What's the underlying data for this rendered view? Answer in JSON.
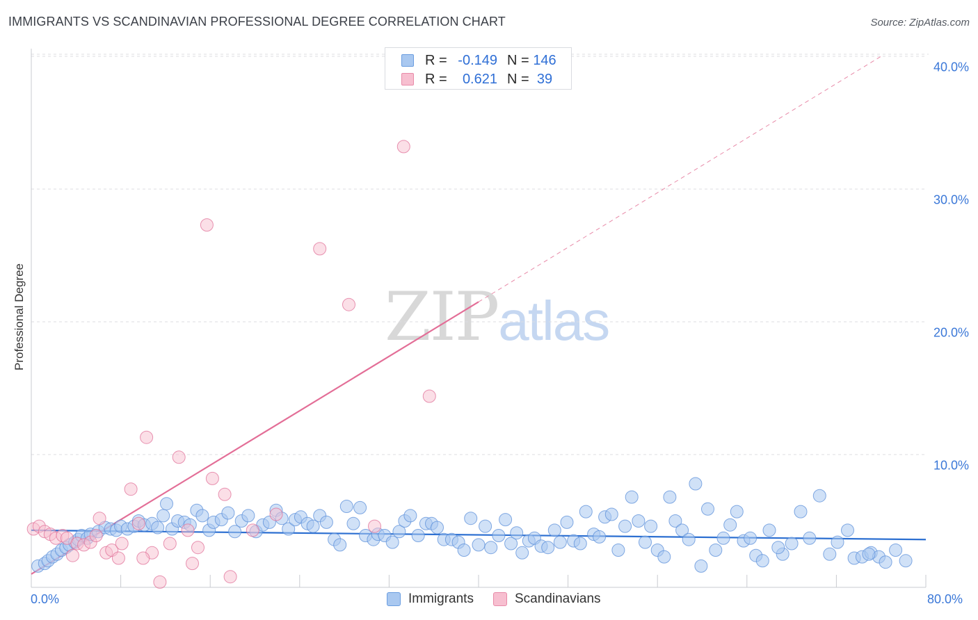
{
  "header": {
    "title": "IMMIGRANTS VS SCANDINAVIAN PROFESSIONAL DEGREE CORRELATION CHART",
    "source": "Source: ZipAtlas.com"
  },
  "watermark": {
    "zip": "ZIP",
    "atlas": "atlas"
  },
  "legend": {
    "rows": [
      {
        "r_label": "R =",
        "r_value": "-0.149",
        "n_label": "N =",
        "n_value": "146",
        "fill": "#a9c8f0",
        "stroke": "#6a9de0"
      },
      {
        "r_label": "R =",
        "r_value": "0.621",
        "n_label": "N =",
        "n_value": "39",
        "fill": "#f7bfd0",
        "stroke": "#e88aa8"
      }
    ]
  },
  "bottom_legend": [
    {
      "label": "Immigrants",
      "fill": "#a9c8f0",
      "stroke": "#6a9de0"
    },
    {
      "label": "Scandinavians",
      "fill": "#f7bfd0",
      "stroke": "#e88aa8"
    }
  ],
  "axes": {
    "ylabel": "Professional Degree",
    "y_ticks": [
      "40.0%",
      "30.0%",
      "20.0%",
      "10.0%"
    ],
    "x_ticks": [
      "0.0%",
      "80.0%"
    ]
  },
  "chart_data": {
    "type": "scatter",
    "title": "IMMIGRANTS VS SCANDINAVIAN PROFESSIONAL DEGREE CORRELATION CHART",
    "xlabel": "",
    "ylabel": "Professional Degree",
    "xlim": [
      0,
      80
    ],
    "ylim": [
      0,
      40
    ],
    "y_tick_values": [
      10,
      20,
      30,
      40
    ],
    "x_tick_values": [
      0,
      80
    ],
    "grid": true,
    "series": [
      {
        "name": "Immigrants",
        "color": "#5b8fd9",
        "fill": "#a9c8f0",
        "r": -0.149,
        "n": 146,
        "trend": {
          "x": [
            0,
            80
          ],
          "y": [
            4.3,
            3.6
          ],
          "style": "solid"
        },
        "points": [
          [
            0.6,
            1.6
          ],
          [
            1.2,
            1.8
          ],
          [
            1.5,
            2.0
          ],
          [
            1.9,
            2.3
          ],
          [
            2.3,
            2.5
          ],
          [
            2.7,
            2.8
          ],
          [
            3.1,
            3.0
          ],
          [
            3.4,
            3.2
          ],
          [
            3.9,
            3.4
          ],
          [
            4.2,
            3.6
          ],
          [
            4.5,
            3.9
          ],
          [
            5.0,
            3.7
          ],
          [
            5.3,
            4.0
          ],
          [
            6.0,
            4.2
          ],
          [
            6.6,
            4.5
          ],
          [
            7.1,
            4.4
          ],
          [
            7.6,
            4.3
          ],
          [
            8.0,
            4.6
          ],
          [
            8.6,
            4.4
          ],
          [
            9.2,
            4.6
          ],
          [
            9.6,
            5.0
          ],
          [
            10.1,
            4.7
          ],
          [
            10.8,
            4.8
          ],
          [
            11.3,
            4.5
          ],
          [
            11.8,
            5.4
          ],
          [
            12.1,
            6.3
          ],
          [
            12.6,
            4.4
          ],
          [
            13.1,
            5.0
          ],
          [
            13.7,
            4.9
          ],
          [
            14.2,
            4.7
          ],
          [
            14.8,
            5.8
          ],
          [
            15.3,
            5.4
          ],
          [
            15.9,
            4.3
          ],
          [
            16.3,
            4.9
          ],
          [
            17.0,
            5.1
          ],
          [
            17.6,
            5.6
          ],
          [
            18.2,
            4.2
          ],
          [
            18.8,
            5.0
          ],
          [
            19.4,
            5.4
          ],
          [
            20.1,
            4.2
          ],
          [
            20.7,
            4.7
          ],
          [
            21.3,
            4.9
          ],
          [
            21.9,
            5.8
          ],
          [
            22.4,
            5.2
          ],
          [
            23.0,
            4.4
          ],
          [
            23.6,
            5.1
          ],
          [
            24.1,
            5.3
          ],
          [
            24.7,
            4.8
          ],
          [
            25.2,
            4.6
          ],
          [
            25.8,
            5.4
          ],
          [
            26.4,
            4.9
          ],
          [
            27.1,
            3.6
          ],
          [
            27.6,
            3.2
          ],
          [
            28.2,
            6.1
          ],
          [
            28.8,
            4.8
          ],
          [
            29.4,
            6.0
          ],
          [
            29.9,
            3.9
          ],
          [
            30.6,
            3.6
          ],
          [
            31.0,
            4.0
          ],
          [
            31.6,
            3.9
          ],
          [
            32.3,
            3.4
          ],
          [
            32.9,
            4.2
          ],
          [
            33.4,
            5.0
          ],
          [
            33.9,
            5.4
          ],
          [
            34.6,
            3.9
          ],
          [
            35.3,
            4.8
          ],
          [
            35.8,
            4.8
          ],
          [
            36.3,
            4.5
          ],
          [
            36.9,
            3.6
          ],
          [
            37.6,
            3.6
          ],
          [
            38.2,
            3.4
          ],
          [
            38.7,
            2.8
          ],
          [
            39.3,
            5.2
          ],
          [
            40.0,
            3.2
          ],
          [
            40.6,
            4.6
          ],
          [
            41.1,
            3.0
          ],
          [
            41.8,
            3.9
          ],
          [
            42.4,
            5.1
          ],
          [
            42.9,
            3.3
          ],
          [
            43.4,
            4.1
          ],
          [
            43.9,
            2.6
          ],
          [
            44.5,
            3.5
          ],
          [
            45.0,
            3.7
          ],
          [
            45.6,
            3.1
          ],
          [
            46.2,
            3.0
          ],
          [
            46.8,
            4.3
          ],
          [
            47.3,
            3.4
          ],
          [
            47.9,
            4.9
          ],
          [
            48.5,
            3.5
          ],
          [
            49.1,
            3.3
          ],
          [
            49.6,
            5.7
          ],
          [
            50.3,
            4.0
          ],
          [
            50.8,
            3.8
          ],
          [
            51.3,
            5.3
          ],
          [
            51.9,
            5.5
          ],
          [
            52.5,
            2.8
          ],
          [
            53.1,
            4.6
          ],
          [
            53.7,
            6.8
          ],
          [
            54.3,
            5.0
          ],
          [
            54.9,
            3.4
          ],
          [
            55.4,
            4.6
          ],
          [
            56.0,
            2.8
          ],
          [
            56.6,
            2.3
          ],
          [
            57.1,
            6.8
          ],
          [
            57.6,
            5.0
          ],
          [
            58.2,
            4.3
          ],
          [
            58.8,
            3.6
          ],
          [
            59.4,
            7.8
          ],
          [
            59.9,
            1.6
          ],
          [
            60.5,
            5.9
          ],
          [
            61.2,
            2.8
          ],
          [
            61.9,
            3.7
          ],
          [
            62.5,
            4.7
          ],
          [
            63.1,
            5.7
          ],
          [
            63.7,
            3.5
          ],
          [
            64.3,
            3.7
          ],
          [
            64.8,
            2.4
          ],
          [
            65.4,
            2.0
          ],
          [
            66.0,
            4.3
          ],
          [
            67.2,
            2.5
          ],
          [
            68.0,
            3.3
          ],
          [
            68.8,
            5.7
          ],
          [
            69.6,
            3.7
          ],
          [
            70.5,
            6.9
          ],
          [
            71.4,
            2.5
          ],
          [
            72.1,
            3.4
          ],
          [
            73.0,
            4.3
          ],
          [
            73.6,
            2.2
          ],
          [
            74.3,
            2.3
          ],
          [
            75.1,
            2.6
          ],
          [
            75.8,
            2.3
          ],
          [
            76.4,
            1.9
          ],
          [
            77.3,
            2.8
          ],
          [
            78.2,
            2.0
          ],
          [
            74.9,
            2.5
          ],
          [
            66.8,
            3.0
          ]
        ]
      },
      {
        "name": "Scandinavians",
        "color": "#e07098",
        "fill": "#f7bfd0",
        "r": 0.621,
        "n": 39,
        "trend": {
          "x": [
            0,
            40
          ],
          "y": [
            1.0,
            21.5
          ],
          "style": "solid",
          "extended": {
            "x": [
              40,
              76
            ],
            "y": [
              21.5,
              40
            ]
          }
        },
        "points": [
          [
            0.2,
            4.4
          ],
          [
            0.7,
            4.6
          ],
          [
            1.2,
            4.2
          ],
          [
            1.7,
            4.0
          ],
          [
            2.2,
            3.7
          ],
          [
            2.8,
            3.9
          ],
          [
            3.2,
            3.7
          ],
          [
            3.7,
            2.4
          ],
          [
            4.1,
            3.3
          ],
          [
            4.7,
            3.2
          ],
          [
            5.3,
            3.4
          ],
          [
            5.8,
            3.9
          ],
          [
            6.1,
            5.2
          ],
          [
            6.7,
            2.6
          ],
          [
            7.2,
            2.8
          ],
          [
            7.8,
            2.2
          ],
          [
            8.1,
            3.3
          ],
          [
            8.9,
            7.4
          ],
          [
            9.6,
            4.8
          ],
          [
            10.3,
            11.3
          ],
          [
            10.8,
            2.6
          ],
          [
            11.5,
            0.4
          ],
          [
            12.4,
            3.3
          ],
          [
            13.2,
            9.8
          ],
          [
            14.0,
            4.3
          ],
          [
            14.4,
            1.8
          ],
          [
            14.9,
            3.0
          ],
          [
            15.7,
            27.3
          ],
          [
            16.2,
            8.2
          ],
          [
            17.3,
            7.0
          ],
          [
            17.8,
            0.8
          ],
          [
            19.8,
            4.3
          ],
          [
            21.9,
            5.5
          ],
          [
            25.8,
            25.5
          ],
          [
            28.4,
            21.3
          ],
          [
            30.7,
            4.6
          ],
          [
            33.3,
            33.2
          ],
          [
            35.6,
            14.4
          ],
          [
            10.0,
            2.2
          ]
        ]
      }
    ]
  }
}
